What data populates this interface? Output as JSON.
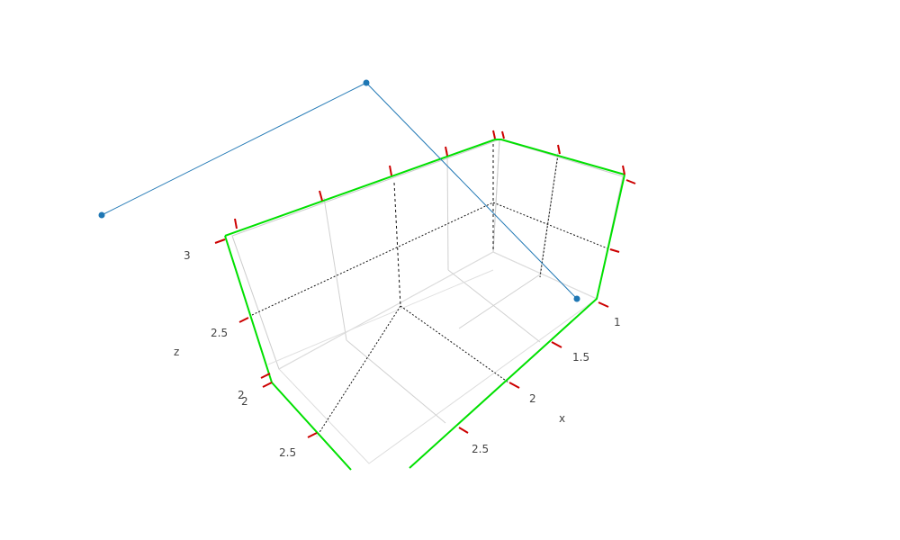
{
  "chart_data": {
    "type": "scatter3d",
    "series": [
      {
        "mode": "lines+markers",
        "x": [
          1,
          2,
          3
        ],
        "y": [
          1,
          2,
          3
        ],
        "z": [
          1,
          3,
          2
        ],
        "color": "#1f77b4"
      }
    ],
    "axes": {
      "x": {
        "title": "x",
        "range": [
          1,
          3
        ],
        "ticks": [
          "1",
          "1.5",
          "2",
          "2.5"
        ]
      },
      "y": {
        "title": "",
        "range": [
          1,
          3
        ],
        "ticks": [
          "2",
          "2.5"
        ]
      },
      "z": {
        "title": "z",
        "range": [
          1,
          3
        ],
        "ticks": [
          "2",
          "2.5",
          "3"
        ]
      }
    },
    "spikes": true,
    "box_edge_color": "#00e000",
    "tick_mark_color": "#cc0000",
    "grid": true,
    "legend": false
  }
}
